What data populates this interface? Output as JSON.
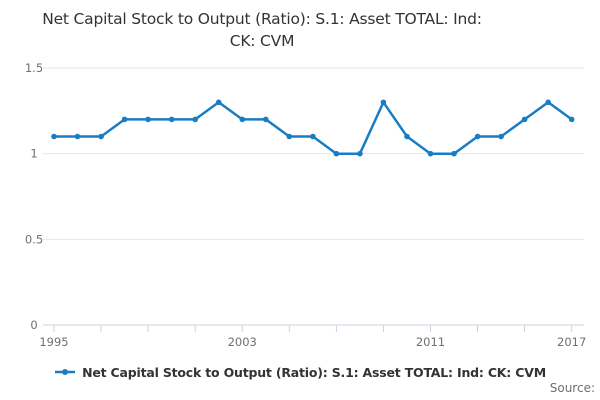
{
  "header": {
    "title_lines": [
      "Net Capital Stock to Output (Ratio): S.1: Asset TOTAL: Ind:",
      "CK: CVM"
    ]
  },
  "legend": {
    "label": "Net Capital Stock to Output (Ratio): S.1: Asset TOTAL: Ind: CK: CVM"
  },
  "footer": {
    "source_label": "Source:"
  },
  "colors": {
    "series": "#1a7dc3",
    "grid": "#e6e6e6",
    "axis": "#c7d3de",
    "title_text": "#333333",
    "axis_label_text": "#707070",
    "legend_text": "#333333",
    "source_text": "#707070"
  },
  "chart_data": {
    "type": "line",
    "title": "Net Capital Stock to Output (Ratio): S.1: Asset TOTAL: Ind: CK: CVM",
    "x": [
      1995,
      1996,
      1997,
      1998,
      1999,
      2000,
      2001,
      2002,
      2003,
      2004,
      2005,
      2006,
      2007,
      2008,
      2009,
      2010,
      2011,
      2012,
      2013,
      2014,
      2015,
      2016,
      2017
    ],
    "series": [
      {
        "name": "Net Capital Stock to Output (Ratio): S.1: Asset TOTAL: Ind: CK: CVM",
        "values": [
          1.1,
          1.1,
          1.1,
          1.2,
          1.2,
          1.2,
          1.2,
          1.3,
          1.2,
          1.2,
          1.1,
          1.1,
          1.0,
          1.0,
          1.3,
          1.1,
          1.0,
          1.0,
          1.1,
          1.1,
          1.2,
          1.3,
          1.2
        ]
      }
    ],
    "xlabel": "",
    "ylabel": "",
    "ylim": [
      0,
      1.5
    ],
    "yticks": [
      0,
      0.5,
      1,
      1.5
    ],
    "ytick_labels": [
      "0",
      "0.5",
      "1",
      "1.5"
    ],
    "xtick_years": [
      1995,
      1997,
      1999,
      2001,
      2003,
      2005,
      2007,
      2009,
      2011,
      2013,
      2015,
      2017
    ],
    "xtick_labeled_years": [
      "1995",
      "2003",
      "2011",
      "2017"
    ],
    "grid": true,
    "legend_position": "bottom",
    "marker": "circle"
  }
}
